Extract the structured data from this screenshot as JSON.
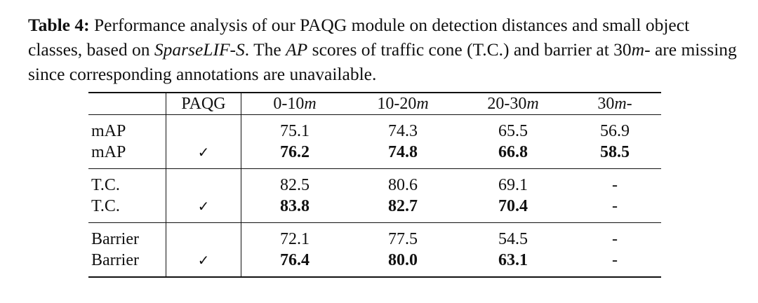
{
  "caption": {
    "label": "Table 4:",
    "part1": " Performance analysis of our PAQG module on detection distances and small object classes, based on ",
    "model": "SparseLIF-S",
    "part2": ". The ",
    "metric": "AP",
    "part3": " scores of traffic cone (T.C.) and barrier at 30",
    "unit": "m",
    "part4": "- are missing since corresponding annotations are unavailable."
  },
  "table": {
    "headers": {
      "metric": "",
      "paqg": "PAQG",
      "d1": "0-10",
      "d2": "10-20",
      "d3": "20-30",
      "d4": "30",
      "unit": "m",
      "suffix4": "-"
    },
    "check": "✓",
    "rows": [
      {
        "metric": "mAP",
        "paqg": "",
        "values": [
          "75.1",
          "74.3",
          "65.5",
          "56.9"
        ]
      },
      {
        "metric": "mAP",
        "paqg": "✓",
        "values": [
          "76.2",
          "74.8",
          "66.8",
          "58.5"
        ]
      },
      {
        "metric": "T.C.",
        "paqg": "",
        "values": [
          "82.5",
          "80.6",
          "69.1",
          "-"
        ]
      },
      {
        "metric": "T.C.",
        "paqg": "✓",
        "values": [
          "83.8",
          "82.7",
          "70.4",
          "-"
        ]
      },
      {
        "metric": "Barrier",
        "paqg": "",
        "values": [
          "72.1",
          "77.5",
          "54.5",
          "-"
        ]
      },
      {
        "metric": "Barrier",
        "paqg": "✓",
        "values": [
          "76.4",
          "80.0",
          "63.1",
          "-"
        ]
      }
    ]
  }
}
